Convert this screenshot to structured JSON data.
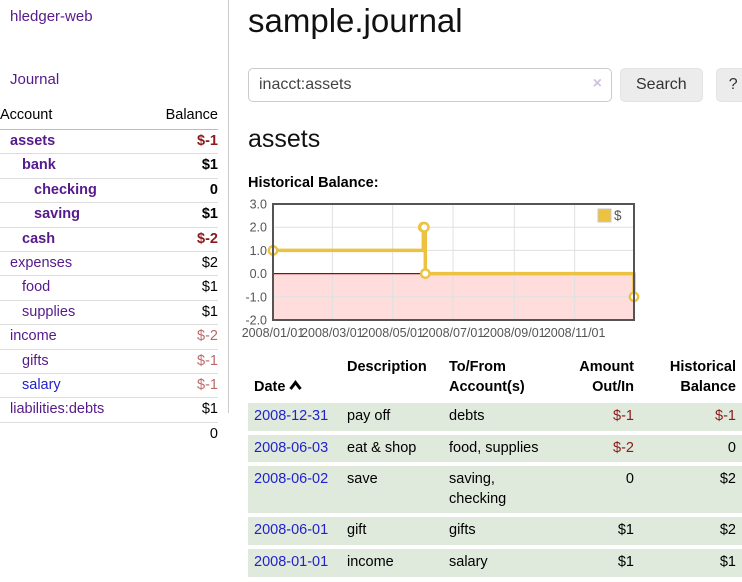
{
  "sidebar": {
    "app_title": "hledger-web",
    "journal_label": "Journal",
    "header": {
      "account": "Account",
      "balance": "Balance"
    },
    "accounts": [
      {
        "name": "assets",
        "depth": 0,
        "bold": true,
        "neg": "strong",
        "blue": false,
        "balance": "$-1"
      },
      {
        "name": "bank",
        "depth": 1,
        "bold": true,
        "neg": null,
        "blue": false,
        "balance": "$1"
      },
      {
        "name": "checking",
        "depth": 2,
        "bold": true,
        "neg": null,
        "blue": false,
        "balance": "0"
      },
      {
        "name": "saving",
        "depth": 2,
        "bold": true,
        "neg": null,
        "blue": false,
        "balance": "$1"
      },
      {
        "name": "cash",
        "depth": 1,
        "bold": true,
        "neg": "strong",
        "blue": false,
        "balance": "$-2"
      },
      {
        "name": "expenses",
        "depth": 0,
        "bold": false,
        "neg": null,
        "blue": false,
        "balance": "$2"
      },
      {
        "name": "food",
        "depth": 1,
        "bold": false,
        "neg": null,
        "blue": false,
        "balance": "$1"
      },
      {
        "name": "supplies",
        "depth": 1,
        "bold": false,
        "neg": null,
        "blue": false,
        "balance": "$1"
      },
      {
        "name": "income",
        "depth": 0,
        "bold": false,
        "neg": "muted",
        "blue": false,
        "balance": "$-2"
      },
      {
        "name": "gifts",
        "depth": 1,
        "bold": false,
        "neg": "muted",
        "blue": false,
        "balance": "$-1"
      },
      {
        "name": "salary",
        "depth": 1,
        "bold": false,
        "neg": "muted",
        "blue": true,
        "balance": "$-1"
      },
      {
        "name": "liabilities:debts",
        "depth": 0,
        "bold": false,
        "neg": null,
        "blue": false,
        "balance": "$1"
      }
    ],
    "total": "0"
  },
  "main": {
    "title": "sample.journal",
    "account_heading": "assets",
    "chart_label": "Historical Balance:"
  },
  "search": {
    "value": "inacct:assets",
    "clear_icon": "×",
    "button_label": "Search",
    "help_label": "?"
  },
  "chart_data": {
    "type": "line",
    "step": true,
    "title": "Historical Balance",
    "ylim": [
      -2,
      3
    ],
    "yticks": [
      "3.0",
      "2.0",
      "1.0",
      "0.0",
      "-1.0",
      "-2.0"
    ],
    "xticks": [
      "2008/01/01",
      "2008/03/01",
      "2008/05/01",
      "2008/07/01",
      "2008/09/01",
      "2008/11/01"
    ],
    "legend": "$",
    "legend_position": "top-right",
    "grid": true,
    "negative_region_color": "#ffdddd",
    "zero_line_color": "#aa0000",
    "series": [
      {
        "name": "$",
        "color": "#edc240",
        "points": [
          [
            "2008-01-01",
            1
          ],
          [
            "2008-06-01",
            2
          ],
          [
            "2008-06-02",
            2
          ],
          [
            "2008-06-03",
            0
          ],
          [
            "2008-12-31",
            -1
          ]
        ]
      }
    ]
  },
  "register": {
    "headers": {
      "date": "Date",
      "description": "Description",
      "accounts": "To/From\nAccount(s)",
      "amount": "Amount\nOut/In",
      "balance": "Historical\nBalance"
    },
    "rows": [
      {
        "date": "2008-12-31",
        "description": "pay off",
        "accounts": [
          "debts"
        ],
        "amount": "$-1",
        "amount_neg": true,
        "balance": "$-1",
        "balance_neg": true
      },
      {
        "date": "2008-06-03",
        "description": "eat & shop",
        "accounts": [
          "food, supplies"
        ],
        "amount": "$-2",
        "amount_neg": true,
        "balance": "0",
        "balance_neg": false
      },
      {
        "date": "2008-06-02",
        "description": "save",
        "accounts": [
          "saving,",
          "checking"
        ],
        "amount": "0",
        "amount_neg": false,
        "balance": "$2",
        "balance_neg": false
      },
      {
        "date": "2008-06-01",
        "description": "gift",
        "accounts": [
          "gifts"
        ],
        "amount": "$1",
        "amount_neg": false,
        "balance": "$2",
        "balance_neg": false
      },
      {
        "date": "2008-01-01",
        "description": "income",
        "accounts": [
          "salary"
        ],
        "amount": "$1",
        "amount_neg": false,
        "balance": "$1",
        "balance_neg": false
      }
    ]
  },
  "colors": {
    "link_purple": "#551a8b",
    "link_blue": "#2222cc",
    "negative_strong": "#8b1a1a",
    "negative_muted": "#bb6a6a",
    "row_green": "#dfe9dc",
    "chart_series": "#edc240",
    "chart_negative_region": "#ffdddd",
    "chart_zero_line": "#aa0000"
  }
}
